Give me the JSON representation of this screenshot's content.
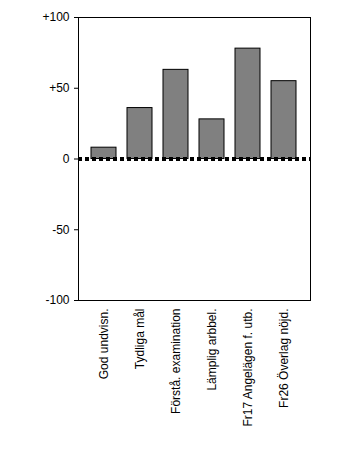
{
  "chart_data": {
    "type": "bar",
    "categories": [
      "God undvisn.",
      "Tydliga mål",
      "Förstå. examination",
      "Lämplig arbbel.",
      "Fr17 Angelägen f. utb.",
      "Fr26 Överlag nöjd."
    ],
    "values": [
      8,
      36,
      63,
      28,
      78,
      55
    ],
    "color": "#808080",
    "ylim": [
      -100,
      100
    ],
    "yticks": [
      {
        "value": -100,
        "label": "-100"
      },
      {
        "value": -50,
        "label": "-50"
      },
      0,
      {
        "value": 50,
        "label": "+50"
      },
      {
        "value": 100,
        "label": "+100"
      }
    ],
    "grid": false
  }
}
